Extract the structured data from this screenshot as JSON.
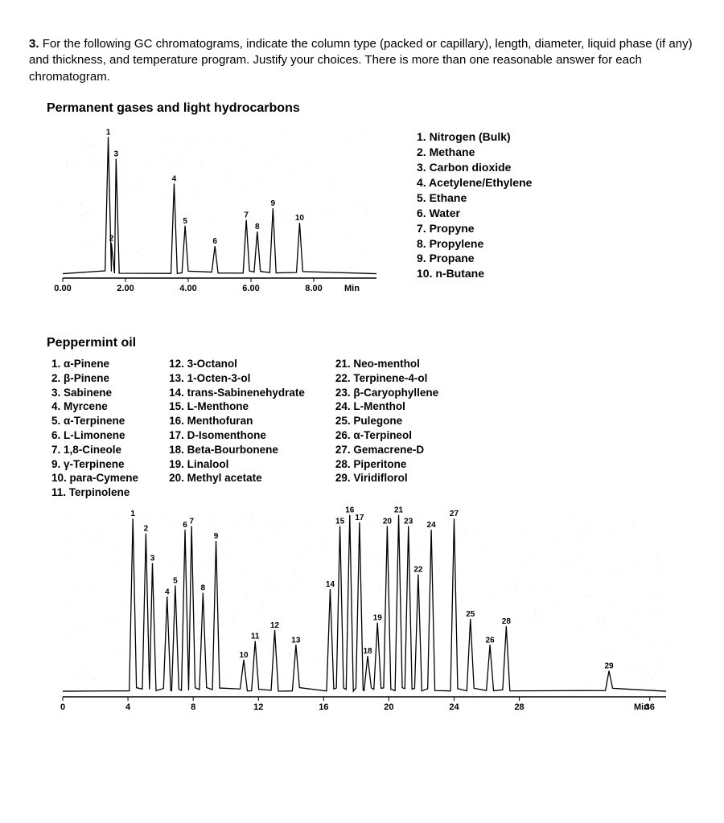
{
  "question": {
    "number": "3.",
    "text": "For the following GC chromatograms, indicate the column type (packed or capillary), length, diameter, liquid phase (if any) and thickness, and temperature program. Justify your choices.  There is more than one reasonable answer for each chromatogram."
  },
  "chrom1": {
    "title": "Permanent gases and light hydrocarbons",
    "xlabel": "Min",
    "x_ticks": [
      "0.00",
      "2.00",
      "4.00",
      "6.00",
      "8.00"
    ],
    "x_tick_pos": [
      0,
      2,
      4,
      6,
      8
    ],
    "xlim": [
      0,
      10
    ],
    "baseline_y": 0,
    "ylim": [
      0,
      100
    ],
    "bg": "#ffffff",
    "axis_color": "#000000",
    "peak_color": "#000000",
    "peak_width_min": 0.1,
    "peaks": [
      {
        "n": "1",
        "rt": 1.45,
        "h": 97
      },
      {
        "n": "2",
        "rt": 1.55,
        "h": 24
      },
      {
        "n": "3",
        "rt": 1.7,
        "h": 82
      },
      {
        "n": "4",
        "rt": 3.55,
        "h": 65
      },
      {
        "n": "5",
        "rt": 3.9,
        "h": 36
      },
      {
        "n": "6",
        "rt": 4.85,
        "h": 22
      },
      {
        "n": "7",
        "rt": 5.85,
        "h": 40
      },
      {
        "n": "8",
        "rt": 6.2,
        "h": 32
      },
      {
        "n": "9",
        "rt": 6.7,
        "h": 48
      },
      {
        "n": "10",
        "rt": 7.55,
        "h": 38
      }
    ],
    "legend": [
      {
        "n": "1.",
        "name": "Nitrogen (Bulk)"
      },
      {
        "n": "2.",
        "name": "Methane"
      },
      {
        "n": "3.",
        "name": "Carbon dioxide"
      },
      {
        "n": "4.",
        "name": "Acetylene/Ethylene"
      },
      {
        "n": "5.",
        "name": "Ethane"
      },
      {
        "n": "6.",
        "name": "Water"
      },
      {
        "n": "7.",
        "name": "Propyne"
      },
      {
        "n": "8.",
        "name": "Propylene"
      },
      {
        "n": "9.",
        "name": "Propane"
      },
      {
        "n": "10.",
        "name": "n-Butane"
      }
    ]
  },
  "chrom2": {
    "title": "Peppermint oil",
    "xlabel": "Min",
    "x_ticks": [
      "0",
      "4",
      "8",
      "12",
      "16",
      "20",
      "24",
      "28",
      "36"
    ],
    "x_tick_pos": [
      0,
      4,
      8,
      12,
      16,
      20,
      24,
      28,
      36
    ],
    "xlim": [
      0,
      37
    ],
    "ylim": [
      0,
      100
    ],
    "bg": "#ffffff",
    "axis_color": "#000000",
    "peak_color": "#000000",
    "peak_width_min": 0.22,
    "peaks": [
      {
        "n": "1",
        "rt": 4.3,
        "h": 96
      },
      {
        "n": "2",
        "rt": 5.1,
        "h": 88
      },
      {
        "n": "3",
        "rt": 5.5,
        "h": 72
      },
      {
        "n": "4",
        "rt": 6.4,
        "h": 54
      },
      {
        "n": "5",
        "rt": 6.9,
        "h": 60
      },
      {
        "n": "6",
        "rt": 7.5,
        "h": 90
      },
      {
        "n": "7",
        "rt": 7.9,
        "h": 92
      },
      {
        "n": "8",
        "rt": 8.6,
        "h": 56
      },
      {
        "n": "9",
        "rt": 9.4,
        "h": 84
      },
      {
        "n": "10",
        "rt": 11.1,
        "h": 20
      },
      {
        "n": "11",
        "rt": 11.8,
        "h": 30
      },
      {
        "n": "12",
        "rt": 13.0,
        "h": 36
      },
      {
        "n": "13",
        "rt": 14.3,
        "h": 28
      },
      {
        "n": "14",
        "rt": 16.4,
        "h": 58
      },
      {
        "n": "15",
        "rt": 17.0,
        "h": 92
      },
      {
        "n": "16",
        "rt": 17.6,
        "h": 98
      },
      {
        "n": "17",
        "rt": 18.2,
        "h": 94
      },
      {
        "n": "18",
        "rt": 18.7,
        "h": 22
      },
      {
        "n": "19",
        "rt": 19.3,
        "h": 40
      },
      {
        "n": "20",
        "rt": 19.9,
        "h": 92
      },
      {
        "n": "21",
        "rt": 20.6,
        "h": 98
      },
      {
        "n": "22",
        "rt": 21.8,
        "h": 66
      },
      {
        "n": "23",
        "rt": 21.2,
        "h": 92
      },
      {
        "n": "24",
        "rt": 22.6,
        "h": 90
      },
      {
        "n": "25",
        "rt": 25.0,
        "h": 42
      },
      {
        "n": "26",
        "rt": 26.2,
        "h": 28
      },
      {
        "n": "27",
        "rt": 24.0,
        "h": 96
      },
      {
        "n": "28",
        "rt": 27.2,
        "h": 38
      },
      {
        "n": "29",
        "rt": 33.5,
        "h": 14
      }
    ],
    "legend_cols": [
      [
        {
          "n": "1.",
          "name": "α-Pinene"
        },
        {
          "n": "2.",
          "name": "β-Pinene"
        },
        {
          "n": "3.",
          "name": "Sabinene"
        },
        {
          "n": "4.",
          "name": "Myrcene"
        },
        {
          "n": "5.",
          "name": "α-Terpinene"
        },
        {
          "n": "6.",
          "name": "L-Limonene"
        },
        {
          "n": "7.",
          "name": "1,8-Cineole"
        },
        {
          "n": "9.",
          "name": "γ-Terpinene"
        },
        {
          "n": "10.",
          "name": "para-Cymene"
        },
        {
          "n": "11.",
          "name": "Terpinolene"
        }
      ],
      [
        {
          "n": "12.",
          "name": "3-Octanol"
        },
        {
          "n": "13.",
          "name": "1-Octen-3-ol"
        },
        {
          "n": "14.",
          "name": "trans-Sabinenehydrate"
        },
        {
          "n": "15.",
          "name": "L-Menthone"
        },
        {
          "n": "16.",
          "name": "Menthofuran"
        },
        {
          "n": "17.",
          "name": "D-Isomenthone"
        },
        {
          "n": "18.",
          "name": "Beta-Bourbonene"
        },
        {
          "n": "19.",
          "name": "Linalool"
        },
        {
          "n": "20.",
          "name": "Methyl acetate"
        }
      ],
      [
        {
          "n": "21.",
          "name": "Neo-menthol"
        },
        {
          "n": "22.",
          "name": "Terpinene-4-ol"
        },
        {
          "n": "23.",
          "name": "β-Caryophyllene"
        },
        {
          "n": "24.",
          "name": "L-Menthol"
        },
        {
          "n": "25.",
          "name": "Pulegone"
        },
        {
          "n": "26.",
          "name": "α-Terpineol"
        },
        {
          "n": "27.",
          "name": "Gemacrene-D"
        },
        {
          "n": "28.",
          "name": "Piperitone"
        },
        {
          "n": "29.",
          "name": "Viridiflorol"
        }
      ]
    ]
  }
}
